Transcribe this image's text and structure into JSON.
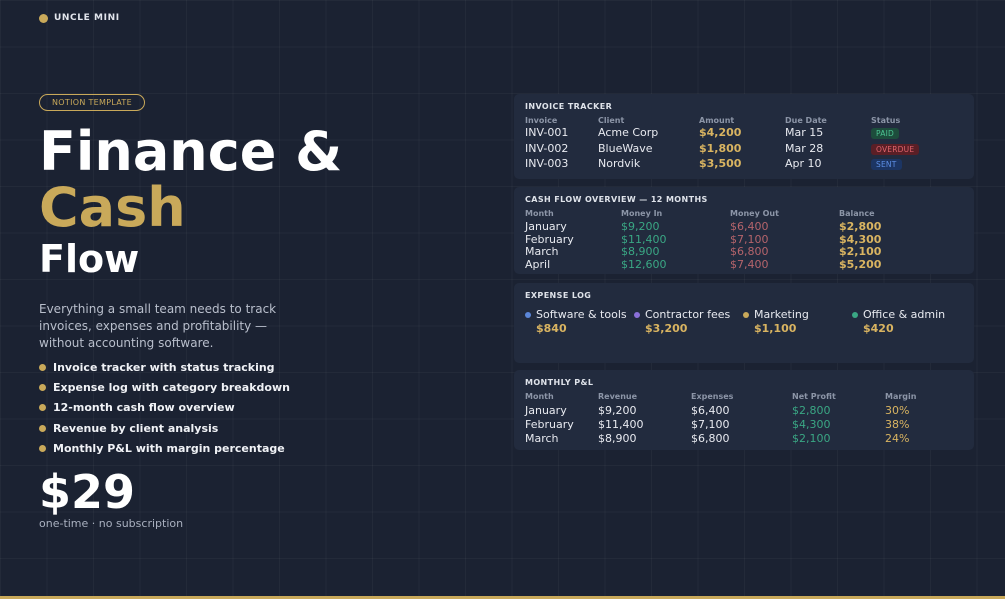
{
  "brand": {
    "name": "UNCLE MINI"
  },
  "tag": "NOTION TEMPLATE",
  "headline": {
    "line1": "Finance &",
    "line2": "Cash",
    "line3": "Flow"
  },
  "description": "Everything a small team needs to track invoices, expenses and profitability — without accounting software.",
  "features": [
    "Invoice tracker with status tracking",
    "Expense log with category breakdown",
    "12-month cash flow overview",
    "Revenue by client analysis",
    "Monthly P&L with margin percentage"
  ],
  "price": "$29",
  "price_note": "one-time · no subscription",
  "colors": {
    "accent": "#c9a95a",
    "background": "#1b2232",
    "panel": "#222b3e",
    "green": "#3aa784",
    "red": "#b5646b"
  },
  "invoice_tracker": {
    "title": "INVOICE TRACKER",
    "columns": [
      "Invoice",
      "Client",
      "Amount",
      "Due Date",
      "Status"
    ],
    "rows": [
      {
        "invoice": "INV-001",
        "client": "Acme Corp",
        "amount": "$4,200",
        "due": "Mar 15",
        "status": "PAID"
      },
      {
        "invoice": "INV-002",
        "client": "BlueWave",
        "amount": "$1,800",
        "due": "Mar 28",
        "status": "OVERDUE"
      },
      {
        "invoice": "INV-003",
        "client": "Nordvik",
        "amount": "$3,500",
        "due": "Apr 10",
        "status": "SENT"
      }
    ],
    "status_colors": {
      "PAID": {
        "bg": "#1d4d3c",
        "fg": "#4cc492"
      },
      "OVERDUE": {
        "bg": "#5a1f26",
        "fg": "#e0646c"
      },
      "SENT": {
        "bg": "#1c3563",
        "fg": "#5d8fe6"
      }
    }
  },
  "cash_flow": {
    "title": "CASH FLOW OVERVIEW — 12 MONTHS",
    "columns": [
      "Month",
      "Money In",
      "Money Out",
      "Balance"
    ],
    "rows": [
      {
        "month": "January",
        "in": "$9,200",
        "out": "$6,400",
        "balance": "$2,800"
      },
      {
        "month": "February",
        "in": "$11,400",
        "out": "$7,100",
        "balance": "$4,300"
      },
      {
        "month": "March",
        "in": "$8,900",
        "out": "$6,800",
        "balance": "$2,100"
      },
      {
        "month": "April",
        "in": "$12,600",
        "out": "$7,400",
        "balance": "$5,200"
      }
    ]
  },
  "expense_log": {
    "title": "EXPENSE LOG",
    "items": [
      {
        "name": "Software & tools",
        "value": "$840",
        "color": "#5b86d8"
      },
      {
        "name": "Contractor fees",
        "value": "$3,200",
        "color": "#8a6fd8"
      },
      {
        "name": "Marketing",
        "value": "$1,100",
        "color": "#c9a95a"
      },
      {
        "name": "Office & admin",
        "value": "$420",
        "color": "#3aa784"
      }
    ]
  },
  "monthly_pl": {
    "title": "MONTHLY P&L",
    "columns": [
      "Month",
      "Revenue",
      "Expenses",
      "Net Profit",
      "Margin"
    ],
    "rows": [
      {
        "month": "January",
        "revenue": "$9,200",
        "expenses": "$6,400",
        "net": "$2,800",
        "margin": "30%"
      },
      {
        "month": "February",
        "revenue": "$11,400",
        "expenses": "$7,100",
        "net": "$4,300",
        "margin": "38%"
      },
      {
        "month": "March",
        "revenue": "$8,900",
        "expenses": "$6,800",
        "net": "$2,100",
        "margin": "24%"
      }
    ]
  }
}
